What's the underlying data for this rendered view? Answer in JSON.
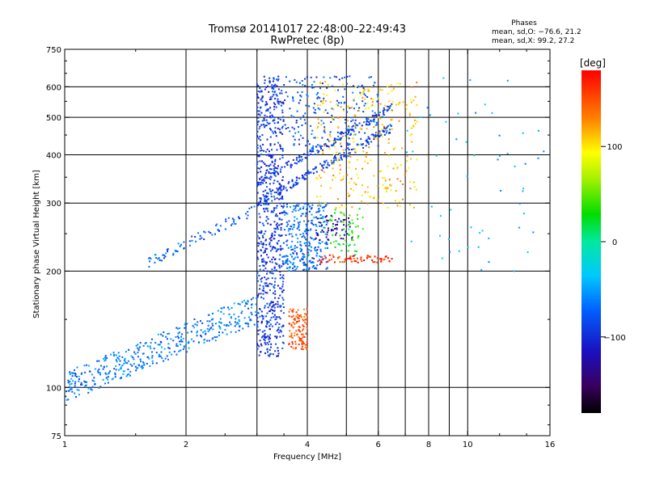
{
  "chart_data": {
    "type": "scatter",
    "title": "Tromsø 20141017 22:48:00–22:49:43",
    "subtitle": "RwPretec (8p)",
    "xlabel": "Frequency [MHz]",
    "ylabel": "Stationary phase Virtual Height [km]",
    "x_scale": "log",
    "y_scale": "log",
    "xlim": [
      1,
      16
    ],
    "ylim": [
      75,
      750
    ],
    "x_ticks": [
      1,
      2,
      4,
      6,
      8,
      10,
      16
    ],
    "x_tick_labels": [
      "1",
      "2",
      "4",
      "6",
      "8",
      "10",
      "16"
    ],
    "x_minor_gridlines": [
      3,
      5,
      7,
      9
    ],
    "y_ticks": [
      75,
      100,
      200,
      300,
      400,
      500,
      600,
      750
    ],
    "y_tick_labels": [
      "75",
      "100",
      "200",
      "300",
      "400",
      "500",
      "600",
      "750"
    ],
    "grid": true,
    "stats": {
      "heading": "Phases",
      "line_o": "mean, sd,O: −76.6, 21.2",
      "line_x": "mean, sd,X:  99.2, 27.2"
    },
    "colorbar": {
      "label": "[deg]",
      "range": [
        -180,
        180
      ],
      "ticks": [
        100,
        0,
        -100
      ],
      "tick_labels": [
        "100",
        "0",
        "−100"
      ]
    },
    "clusters": [
      {
        "name": "low trace",
        "f": [
          1.0,
          3.0
        ],
        "h": [
          100,
          160
        ],
        "phase": -65,
        "n": 420
      },
      {
        "name": "E-to-F rise",
        "f": [
          1.6,
          3.0
        ],
        "h": [
          210,
          290
        ],
        "phase": -75,
        "n": 80
      },
      {
        "name": "vertical column",
        "f": [
          3.0,
          3.5
        ],
        "h": [
          120,
          640
        ],
        "phase": -95,
        "n": 700
      },
      {
        "name": "F layer O trace",
        "f": [
          3.0,
          6.5
        ],
        "h": [
          290,
          420
        ],
        "phase": -90,
        "n": 350
      },
      {
        "name": "mid band",
        "f": [
          3.5,
          4.5
        ],
        "h": [
          200,
          300
        ],
        "phase": -70,
        "n": 300
      },
      {
        "name": "high O",
        "f": [
          3.5,
          6.0
        ],
        "h": [
          420,
          640
        ],
        "phase": -80,
        "n": 200
      },
      {
        "name": "low X patch",
        "f": [
          3.6,
          4.0
        ],
        "h": [
          125,
          160
        ],
        "phase": 150,
        "n": 110
      },
      {
        "name": "X trace",
        "f": [
          4.2,
          7.5
        ],
        "h": [
          290,
          620
        ],
        "phase": 110,
        "n": 280
      },
      {
        "name": "X floor",
        "f": [
          4.2,
          6.5
        ],
        "h": [
          210,
          220
        ],
        "phase": 160,
        "n": 70
      },
      {
        "name": "green patch",
        "f": [
          4.5,
          5.5
        ],
        "h": [
          220,
          290
        ],
        "phase": 30,
        "n": 60
      },
      {
        "name": "mixed patch",
        "f": [
          4.2,
          5.2
        ],
        "h": [
          240,
          280
        ],
        "phase": -130,
        "n": 50
      },
      {
        "name": "sparse high freq",
        "f": [
          7.0,
          16.0
        ],
        "h": [
          200,
          640
        ],
        "phase": -40,
        "n": 55
      }
    ]
  }
}
